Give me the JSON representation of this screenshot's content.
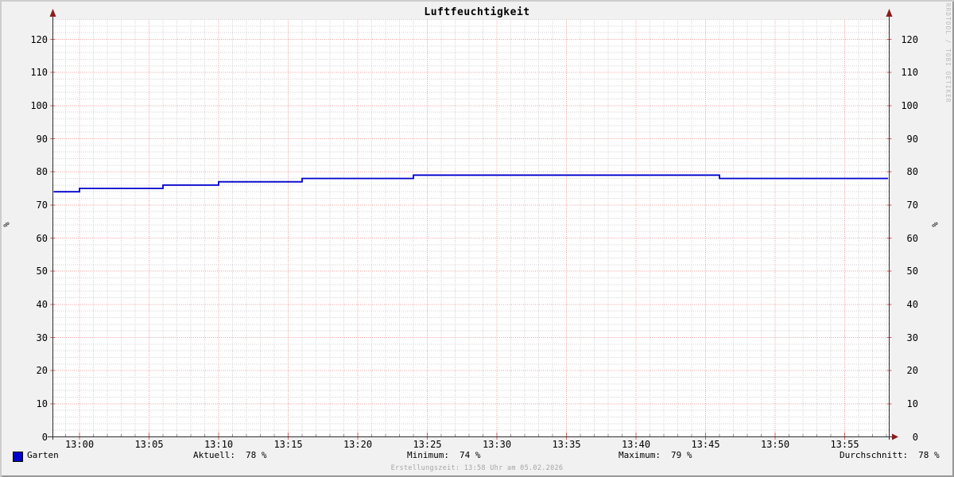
{
  "title": "Luftfeuchtigkeit",
  "watermark": "RRDTOOL / TOBI OETIKER",
  "footer": "Erstellungszeit: 13:58 Uhr am 05.02.2026",
  "y_axis_unit": "%",
  "legend": {
    "series_label": "Garten",
    "series_color": "#0000cc",
    "stats": [
      {
        "label": "Aktuell:",
        "value": "78 %"
      },
      {
        "label": "Minimum:",
        "value": "74 %"
      },
      {
        "label": "Maximum:",
        "value": "79 %"
      },
      {
        "label": "Durchschnitt:",
        "value": "78 %"
      }
    ]
  },
  "chart_data": {
    "type": "line",
    "title": "Luftfeuchtigkeit",
    "ylabel": "%",
    "xlabel": "",
    "grid": true,
    "legend_position": "bottom",
    "ylim": [
      0,
      126
    ],
    "y_ticks": [
      0,
      10,
      20,
      30,
      40,
      50,
      60,
      70,
      80,
      90,
      100,
      110,
      120
    ],
    "x_tick_labels": [
      "13:00",
      "13:05",
      "13:10",
      "13:15",
      "13:20",
      "13:25",
      "13:30",
      "13:35",
      "13:40",
      "13:45",
      "13:50",
      "13:55"
    ],
    "x_range": [
      "12:58",
      "13:58"
    ],
    "series": [
      {
        "name": "Garten",
        "color": "#0000cc",
        "unit": "%",
        "segments": [
          {
            "from": "12:58",
            "to": "13:00",
            "value": 74
          },
          {
            "from": "13:00",
            "to": "13:06",
            "value": 75
          },
          {
            "from": "13:06",
            "to": "13:10",
            "value": 76
          },
          {
            "from": "13:10",
            "to": "13:16",
            "value": 77
          },
          {
            "from": "13:16",
            "to": "13:24",
            "value": 78
          },
          {
            "from": "13:24",
            "to": "13:46",
            "value": 79
          },
          {
            "from": "13:46",
            "to": "13:58",
            "value": 78
          }
        ],
        "stats": {
          "current": 78,
          "min": 74,
          "max": 79,
          "avg": 78
        }
      }
    ]
  }
}
